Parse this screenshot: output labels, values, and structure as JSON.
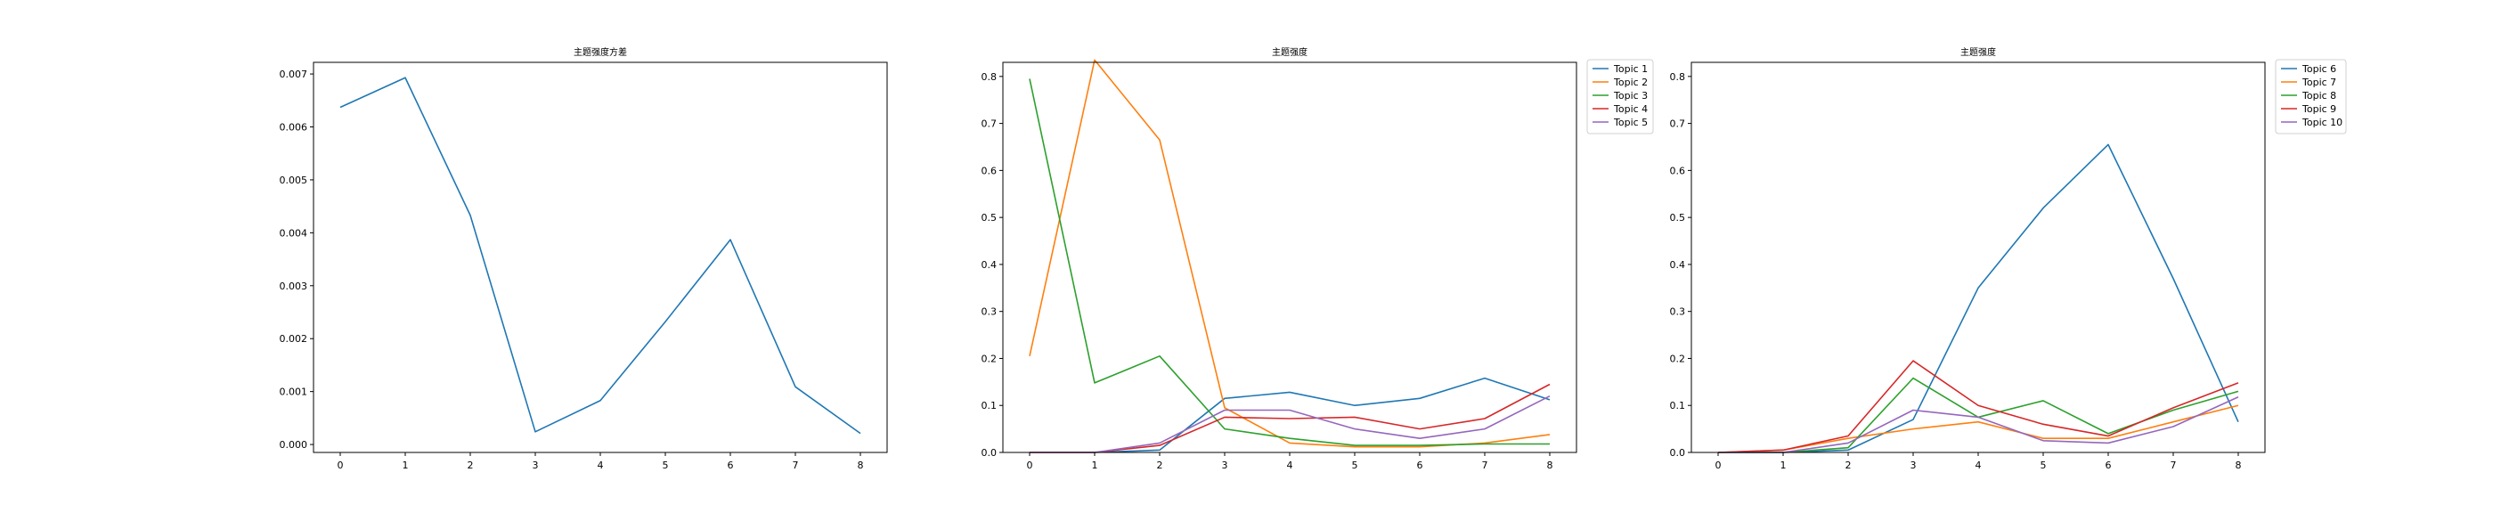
{
  "chart_data": [
    {
      "type": "line",
      "title": "主题强度方差",
      "xlabel": "",
      "ylabel": "",
      "x": [
        0,
        1,
        2,
        3,
        4,
        5,
        6,
        7,
        8
      ],
      "xticks": [
        "0",
        "1",
        "2",
        "3",
        "4",
        "5",
        "6",
        "7",
        "8"
      ],
      "ylim": [
        -0.00015,
        0.00722
      ],
      "yticks": [
        "0.000",
        "0.001",
        "0.002",
        "0.003",
        "0.004",
        "0.005",
        "0.006",
        "0.007"
      ],
      "yticks_values": [
        0,
        0.001,
        0.002,
        0.003,
        0.004,
        0.005,
        0.006,
        0.007
      ],
      "grid": false,
      "legend": "none",
      "series": [
        {
          "color": "#1f77b4",
          "values": [
            0.00637,
            0.00693,
            0.00433,
            0.00024,
            0.00083,
            0.00232,
            0.00387,
            0.00109,
            0.00021
          ]
        }
      ]
    },
    {
      "type": "line",
      "title": "主题强度",
      "xlabel": "",
      "ylabel": "",
      "x": [
        0,
        1,
        2,
        3,
        4,
        5,
        6,
        7,
        8
      ],
      "xticks": [
        "0",
        "1",
        "2",
        "3",
        "4",
        "5",
        "6",
        "7",
        "8"
      ],
      "ylim": [
        0,
        0.83
      ],
      "yticks": [
        "0.0",
        "0.1",
        "0.2",
        "0.3",
        "0.4",
        "0.5",
        "0.6",
        "0.7",
        "0.8"
      ],
      "yticks_values": [
        0,
        0.1,
        0.2,
        0.3,
        0.4,
        0.5,
        0.6,
        0.7,
        0.8
      ],
      "grid": false,
      "legend": "outside-top-right",
      "series": [
        {
          "name": "Topic 1",
          "color": "#1f77b4",
          "values": [
            0.0,
            0.0,
            0.005,
            0.115,
            0.128,
            0.1,
            0.115,
            0.158,
            0.112
          ]
        },
        {
          "name": "Topic 2",
          "color": "#ff7f0e",
          "values": [
            0.205,
            0.835,
            0.665,
            0.095,
            0.02,
            0.012,
            0.012,
            0.02,
            0.038
          ]
        },
        {
          "name": "Topic 3",
          "color": "#2ca02c",
          "values": [
            0.795,
            0.148,
            0.205,
            0.05,
            0.03,
            0.015,
            0.015,
            0.018,
            0.018
          ]
        },
        {
          "name": "Topic 4",
          "color": "#d62728",
          "values": [
            0.0,
            0.0,
            0.015,
            0.075,
            0.072,
            0.075,
            0.05,
            0.072,
            0.145
          ]
        },
        {
          "name": "Topic 5",
          "color": "#9467bd",
          "values": [
            0.0,
            0.0,
            0.02,
            0.09,
            0.09,
            0.05,
            0.03,
            0.05,
            0.12
          ]
        }
      ]
    },
    {
      "type": "line",
      "title": "主题强度",
      "xlabel": "",
      "ylabel": "",
      "x": [
        0,
        1,
        2,
        3,
        4,
        5,
        6,
        7,
        8
      ],
      "xticks": [
        "0",
        "1",
        "2",
        "3",
        "4",
        "5",
        "6",
        "7",
        "8"
      ],
      "ylim": [
        0,
        0.83
      ],
      "yticks": [
        "0.0",
        "0.1",
        "0.2",
        "0.3",
        "0.4",
        "0.5",
        "0.6",
        "0.7",
        "0.8"
      ],
      "yticks_values": [
        0,
        0.1,
        0.2,
        0.3,
        0.4,
        0.5,
        0.6,
        0.7,
        0.8
      ],
      "grid": false,
      "legend": "outside-top-right",
      "series": [
        {
          "name": "Topic 6",
          "color": "#1f77b4",
          "values": [
            0.0,
            0.0,
            0.005,
            0.07,
            0.35,
            0.52,
            0.655,
            0.37,
            0.065
          ]
        },
        {
          "name": "Topic 7",
          "color": "#ff7f0e",
          "values": [
            0.0,
            0.005,
            0.03,
            0.05,
            0.065,
            0.03,
            0.03,
            0.065,
            0.1
          ]
        },
        {
          "name": "Topic 8",
          "color": "#2ca02c",
          "values": [
            0.0,
            0.0,
            0.01,
            0.158,
            0.075,
            0.11,
            0.04,
            0.09,
            0.13
          ]
        },
        {
          "name": "Topic 9",
          "color": "#d62728",
          "values": [
            0.0,
            0.005,
            0.035,
            0.195,
            0.1,
            0.06,
            0.035,
            0.095,
            0.148
          ]
        },
        {
          "name": "Topic 10",
          "color": "#9467bd",
          "values": [
            0.0,
            0.0,
            0.02,
            0.09,
            0.075,
            0.025,
            0.02,
            0.055,
            0.118
          ]
        }
      ]
    }
  ]
}
